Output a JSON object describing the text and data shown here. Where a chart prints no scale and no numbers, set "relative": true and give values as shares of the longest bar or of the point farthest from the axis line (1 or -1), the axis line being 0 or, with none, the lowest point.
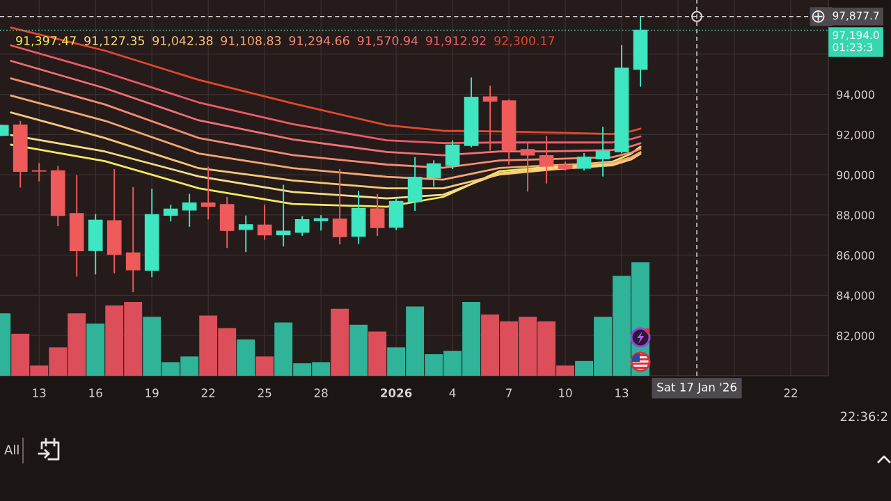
{
  "chart_data": [
    {
      "type": "candlestick",
      "x": [
        "2025-12-11",
        "2025-12-12",
        "2025-12-13",
        "2025-12-14",
        "2025-12-15",
        "2025-12-16",
        "2025-12-17",
        "2025-12-18",
        "2025-12-19",
        "2025-12-20",
        "2025-12-21",
        "2025-12-22",
        "2025-12-23",
        "2025-12-24",
        "2025-12-25",
        "2025-12-26",
        "2025-12-27",
        "2025-12-28",
        "2025-12-29",
        "2025-12-30",
        "2025-12-31",
        "2026-01-01",
        "2026-01-02",
        "2026-01-03",
        "2026-01-04",
        "2026-01-05",
        "2026-01-06",
        "2026-01-07",
        "2026-01-08",
        "2026-01-09",
        "2026-01-10",
        "2026-01-11",
        "2026-01-12",
        "2026-01-13",
        "2026-01-14"
      ],
      "ohlc": [
        [
          91960,
          92460,
          91960,
          92460
        ],
        [
          92480,
          92650,
          89400,
          90170
        ],
        [
          90200,
          90550,
          89710,
          90180
        ],
        [
          90200,
          90400,
          87480,
          87980
        ],
        [
          88070,
          89950,
          84970,
          86220
        ],
        [
          86230,
          88010,
          85080,
          87740
        ],
        [
          87720,
          90250,
          85130,
          86040
        ],
        [
          86120,
          89360,
          84190,
          85270
        ],
        [
          85250,
          89270,
          84940,
          88020
        ],
        [
          87990,
          88480,
          87710,
          88300
        ],
        [
          88250,
          89020,
          87450,
          88600
        ],
        [
          88600,
          90370,
          87810,
          88430
        ],
        [
          88520,
          88870,
          86390,
          87230
        ],
        [
          87280,
          87940,
          86190,
          87520
        ],
        [
          87500,
          88480,
          86800,
          87010
        ],
        [
          87020,
          89470,
          86470,
          87200
        ],
        [
          87140,
          87910,
          87000,
          87770
        ],
        [
          87720,
          87960,
          87260,
          87820
        ],
        [
          87800,
          90260,
          86570,
          86920
        ],
        [
          86940,
          89170,
          86590,
          88330
        ],
        [
          88310,
          89010,
          86990,
          87370
        ],
        [
          87390,
          88820,
          87280,
          88680
        ],
        [
          88660,
          90850,
          88240,
          89880
        ],
        [
          89860,
          90690,
          89440,
          90550
        ],
        [
          90460,
          91680,
          90320,
          91480
        ],
        [
          91460,
          94810,
          91400,
          93860
        ],
        [
          93880,
          94400,
          91230,
          93670
        ],
        [
          93680,
          93720,
          90540,
          91210
        ],
        [
          91260,
          91530,
          89200,
          90980
        ],
        [
          90960,
          91900,
          89600,
          90430
        ],
        [
          90480,
          90620,
          90240,
          90310
        ],
        [
          90320,
          91050,
          90250,
          90880
        ],
        [
          90790,
          92360,
          89950,
          91180
        ],
        [
          91150,
          96420,
          91100,
          95310
        ],
        [
          95250,
          97850,
          94420,
          97194.0
        ]
      ],
      "colors": [
        "#3fe6c2",
        "#ef5b5b",
        "#ef5b5b",
        "#ef5b5b",
        "#ef5b5b",
        "#3fe6c2",
        "#ef5b5b",
        "#ef5b5b",
        "#3fe6c2",
        "#3fe6c2",
        "#3fe6c2",
        "#ef5b5b",
        "#ef5b5b",
        "#3fe6c2",
        "#ef5b5b",
        "#3fe6c2",
        "#3fe6c2",
        "#3fe6c2",
        "#ef5b5b",
        "#3fe6c2",
        "#ef5b5b",
        "#3fe6c2",
        "#3fe6c2",
        "#3fe6c2",
        "#3fe6c2",
        "#3fe6c2",
        "#ef5b5b",
        "#ef5b5b",
        "#ef5b5b",
        "#ef5b5b",
        "#ef5b5b",
        "#3fe6c2",
        "#3fe6c2",
        "#3fe6c2",
        "#3fe6c2"
      ],
      "series": [
        {
          "type": "line",
          "color": "#f3ea5c",
          "x": [
            "2025-12-11T12:00",
            "2025-12-16T12:00",
            "2025-12-21T12:00",
            "2025-12-26T12:00",
            "2025-12-31T12:00",
            "2026-01-03T12:00",
            "2026-01-06T12:00",
            "2026-01-09T12:00",
            "2026-01-12T12:00",
            "2026-01-13T12:00",
            "2026-01-14"
          ],
          "values": [
            91500,
            90680,
            89330,
            88550,
            88410,
            88900,
            90180,
            90420,
            90650,
            91050,
            91397.47
          ]
        },
        {
          "type": "line",
          "color": "#f6dc86",
          "x": [
            "2025-12-11T12:00",
            "2025-12-16T12:00",
            "2025-12-21T12:00",
            "2025-12-26T12:00",
            "2025-12-31T12:00",
            "2026-01-03T12:00",
            "2026-01-06T12:00",
            "2026-01-09T12:00",
            "2026-01-12T12:00",
            "2026-01-13T12:00",
            "2026-01-14"
          ],
          "values": [
            91980,
            91160,
            89920,
            89150,
            88830,
            89010,
            90070,
            90350,
            90540,
            90850,
            91127.35
          ]
        },
        {
          "type": "line",
          "color": "#f8c878",
          "x": [
            "2025-12-11T12:00",
            "2025-12-16T12:00",
            "2025-12-21T12:00",
            "2025-12-26T12:00",
            "2025-12-31T12:00",
            "2026-01-03T12:00",
            "2026-01-06T12:00",
            "2026-01-09T12:00",
            "2026-01-12T12:00",
            "2026-01-13T12:00",
            "2026-01-14"
          ],
          "values": [
            93100,
            91830,
            90330,
            89720,
            89330,
            89330,
            90010,
            90280,
            90470,
            90760,
            91042.38
          ]
        },
        {
          "type": "line",
          "color": "#f6a772",
          "x": [
            "2025-12-11T12:00",
            "2025-12-16T12:00",
            "2025-12-21T12:00",
            "2025-12-26T12:00",
            "2025-12-31T12:00",
            "2026-01-03T12:00",
            "2026-01-06T12:00",
            "2026-01-09T12:00",
            "2026-01-12T12:00",
            "2026-01-13T12:00",
            "2026-01-14"
          ],
          "values": [
            93940,
            92690,
            91060,
            90330,
            89900,
            89760,
            90340,
            90480,
            90600,
            90870,
            91108.83
          ]
        },
        {
          "type": "line",
          "color": "#f48b72",
          "x": [
            "2025-12-11T12:00",
            "2025-12-16T12:00",
            "2025-12-21T12:00",
            "2025-12-26T12:00",
            "2025-12-31T12:00",
            "2026-01-03T12:00",
            "2026-01-06T12:00",
            "2026-01-09T12:00",
            "2026-01-12T12:00",
            "2026-01-13T12:00",
            "2026-01-14"
          ],
          "values": [
            94800,
            93500,
            91830,
            90980,
            90510,
            90350,
            90710,
            90790,
            90880,
            91100,
            91294.66
          ]
        },
        {
          "type": "line",
          "color": "#f27076",
          "x": [
            "2025-12-11T12:00",
            "2025-12-16T12:00",
            "2025-12-21T12:00",
            "2025-12-26T12:00",
            "2025-12-31T12:00",
            "2026-01-03T12:00",
            "2026-01-06T12:00",
            "2026-01-09T12:00",
            "2026-01-12T12:00",
            "2026-01-13T12:00",
            "2026-01-14"
          ],
          "values": [
            95670,
            94310,
            92710,
            91760,
            91140,
            90970,
            91160,
            91170,
            91230,
            91420,
            91570.94
          ]
        },
        {
          "type": "line",
          "color": "#ee5968",
          "x": [
            "2025-12-11T12:00",
            "2025-12-16T12:00",
            "2025-12-21T12:00",
            "2025-12-26T12:00",
            "2025-12-31T12:00",
            "2026-01-03T12:00",
            "2026-01-06T12:00",
            "2026-01-09T12:00",
            "2026-01-12T12:00",
            "2026-01-13T12:00",
            "2026-01-14"
          ],
          "values": [
            96440,
            95100,
            93600,
            92520,
            91720,
            91580,
            91610,
            91610,
            91610,
            91780,
            91912.92
          ]
        },
        {
          "type": "line",
          "color": "#e5472e",
          "x": [
            "2025-12-11T12:00",
            "2025-12-16T12:00",
            "2025-12-21T12:00",
            "2025-12-26T12:00",
            "2025-12-31T12:00",
            "2026-01-03T12:00",
            "2026-01-06T12:00",
            "2026-01-09T12:00",
            "2026-01-12T12:00",
            "2026-01-13T12:00",
            "2026-01-14"
          ],
          "values": [
            97330,
            96180,
            94720,
            93550,
            92470,
            92190,
            92160,
            92100,
            92030,
            92170,
            92300.17
          ]
        }
      ],
      "xlim": [
        "2025-12-10T22:00",
        "2026-01-24"
      ],
      "xticks": [
        {
          "value": "2025-12-13",
          "label": "13"
        },
        {
          "value": "2025-12-16",
          "label": "16"
        },
        {
          "value": "2025-12-19",
          "label": "19"
        },
        {
          "value": "2025-12-22",
          "label": "22"
        },
        {
          "value": "2025-12-25",
          "label": "25"
        },
        {
          "value": "2025-12-28",
          "label": "28"
        },
        {
          "value": "2026-01-01",
          "label": "2026"
        },
        {
          "value": "2026-01-04",
          "label": "4"
        },
        {
          "value": "2026-01-07",
          "label": "7"
        },
        {
          "value": "2026-01-10",
          "label": "10"
        },
        {
          "value": "2026-01-13",
          "label": "13"
        },
        {
          "value": "2026-01-16",
          "label": null
        },
        {
          "value": "2026-01-19",
          "label": null
        },
        {
          "value": "2026-01-22",
          "label": "22"
        }
      ],
      "ylim": [
        80000,
        98700
      ],
      "yticks": [
        {
          "value": 82000,
          "label": "82,000"
        },
        {
          "value": 84000,
          "label": "84,000"
        },
        {
          "value": 86000,
          "label": "86,000"
        },
        {
          "value": 88000,
          "label": "88,000"
        },
        {
          "value": 90000,
          "label": "90,000"
        },
        {
          "value": 92000,
          "label": "92,000"
        },
        {
          "value": 94000,
          "label": "94,000"
        },
        {
          "value": 96000,
          "label": null
        }
      ],
      "grid": true,
      "ref_lines": [
        {
          "axis": "y",
          "value": 97877.7,
          "label": "97,877.7",
          "color": "#d6d3d3",
          "line_style": "dashed"
        },
        {
          "axis": "x",
          "value": "2026-01-17",
          "label": "Sat 17 Jan '26",
          "color": "#d6d3d3",
          "line_style": "dashed"
        },
        {
          "axis": "y",
          "value": 97194.0,
          "label": "97,194.0\n01:23:3",
          "color": "#36d6b0",
          "line_style": "dotted"
        }
      ],
      "annotations": [
        "91,397.47",
        "91,127.35",
        "91,042.38",
        "91,108.83",
        "91,294.66",
        "91,570.94",
        "91,912.92",
        "92,300.17",
        "All",
        "22:36:2"
      ]
    },
    {
      "type": "bar",
      "x": [
        "2025-12-11",
        "2025-12-12",
        "2025-12-13",
        "2025-12-14",
        "2025-12-15",
        "2025-12-16",
        "2025-12-17",
        "2025-12-18",
        "2025-12-19",
        "2025-12-20",
        "2025-12-21",
        "2025-12-22",
        "2025-12-23",
        "2025-12-24",
        "2025-12-25",
        "2025-12-26",
        "2025-12-27",
        "2025-12-28",
        "2025-12-29",
        "2025-12-30",
        "2025-12-31",
        "2026-01-01",
        "2026-01-02",
        "2026-01-03",
        "2026-01-04",
        "2026-01-05",
        "2026-01-06",
        "2026-01-07",
        "2026-01-08",
        "2026-01-09",
        "2026-01-10",
        "2026-01-11",
        "2026-01-12",
        "2026-01-13",
        "2026-01-14"
      ],
      "values": [
        0.55,
        0.37,
        0.09,
        0.25,
        0.55,
        0.46,
        0.62,
        0.65,
        0.52,
        0.12,
        0.17,
        0.53,
        0.42,
        0.32,
        0.17,
        0.47,
        0.11,
        0.12,
        0.59,
        0.45,
        0.39,
        0.25,
        0.61,
        0.19,
        0.22,
        0.65,
        0.54,
        0.48,
        0.52,
        0.48,
        0.09,
        0.13,
        0.52,
        0.88,
        1
      ],
      "colors": [
        "#2fb399",
        "#dc4f5a",
        "#dc4f5a",
        "#dc4f5a",
        "#dc4f5a",
        "#2fb399",
        "#dc4f5a",
        "#dc4f5a",
        "#2fb399",
        "#2fb399",
        "#2fb399",
        "#dc4f5a",
        "#dc4f5a",
        "#2fb399",
        "#dc4f5a",
        "#2fb399",
        "#2fb399",
        "#2fb399",
        "#dc4f5a",
        "#2fb399",
        "#dc4f5a",
        "#2fb399",
        "#2fb399",
        "#2fb399",
        "#2fb399",
        "#2fb399",
        "#dc4f5a",
        "#dc4f5a",
        "#dc4f5a",
        "#dc4f5a",
        "#dc4f5a",
        "#2fb399",
        "#2fb399",
        "#2fb399",
        "#2fb399"
      ],
      "relative": true,
      "xlim": [
        "2025-12-10T22:00",
        "2026-01-24"
      ],
      "tick_labels": false
    }
  ]
}
